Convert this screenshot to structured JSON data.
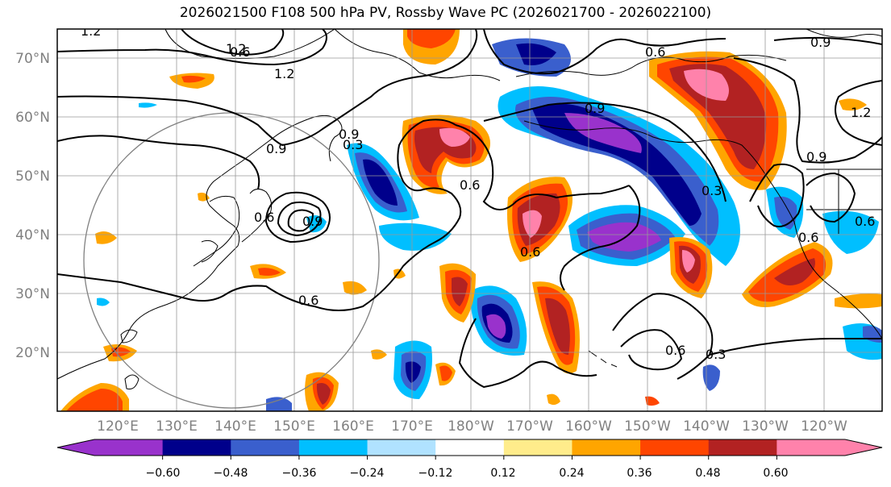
{
  "title": "2026021500 F108 500 hPa PV, Rossby Wave PC (2026021700 - 2026022100)",
  "lat_labels": [
    "70°N",
    "60°N",
    "50°N",
    "40°N",
    "30°N",
    "20°N"
  ],
  "lon_labels": [
    "120°E",
    "130°E",
    "140°E",
    "150°E",
    "160°E",
    "170°E",
    "180°W",
    "170°W",
    "160°W",
    "150°W",
    "140°W",
    "130°W",
    "120°W"
  ],
  "contour_labels": [
    "1.2",
    "1.2",
    "0.6",
    "1.2",
    "0.9",
    "0.9",
    "0.6",
    "0.9",
    "0.9",
    "0.6",
    "0.6",
    "0.3",
    "0.6",
    "0.3",
    "1.2",
    "0.9",
    "0.9",
    "0.6",
    "0.6",
    "0.6",
    "0.3",
    "0.6"
  ],
  "colorbar": {
    "colors": [
      "#9932CC",
      "#00008B",
      "#3A5FCD",
      "#00BFFF",
      "#B0E2FF",
      "#FFFFFF",
      "#FFEC8B",
      "#FFA500",
      "#FF4500",
      "#B22222",
      "#FF82AB"
    ],
    "tick_labels": [
      "−0.60",
      "−0.48",
      "−0.36",
      "−0.24",
      "−0.12",
      "0.12",
      "0.24",
      "0.36",
      "0.48",
      "0.60"
    ]
  }
}
